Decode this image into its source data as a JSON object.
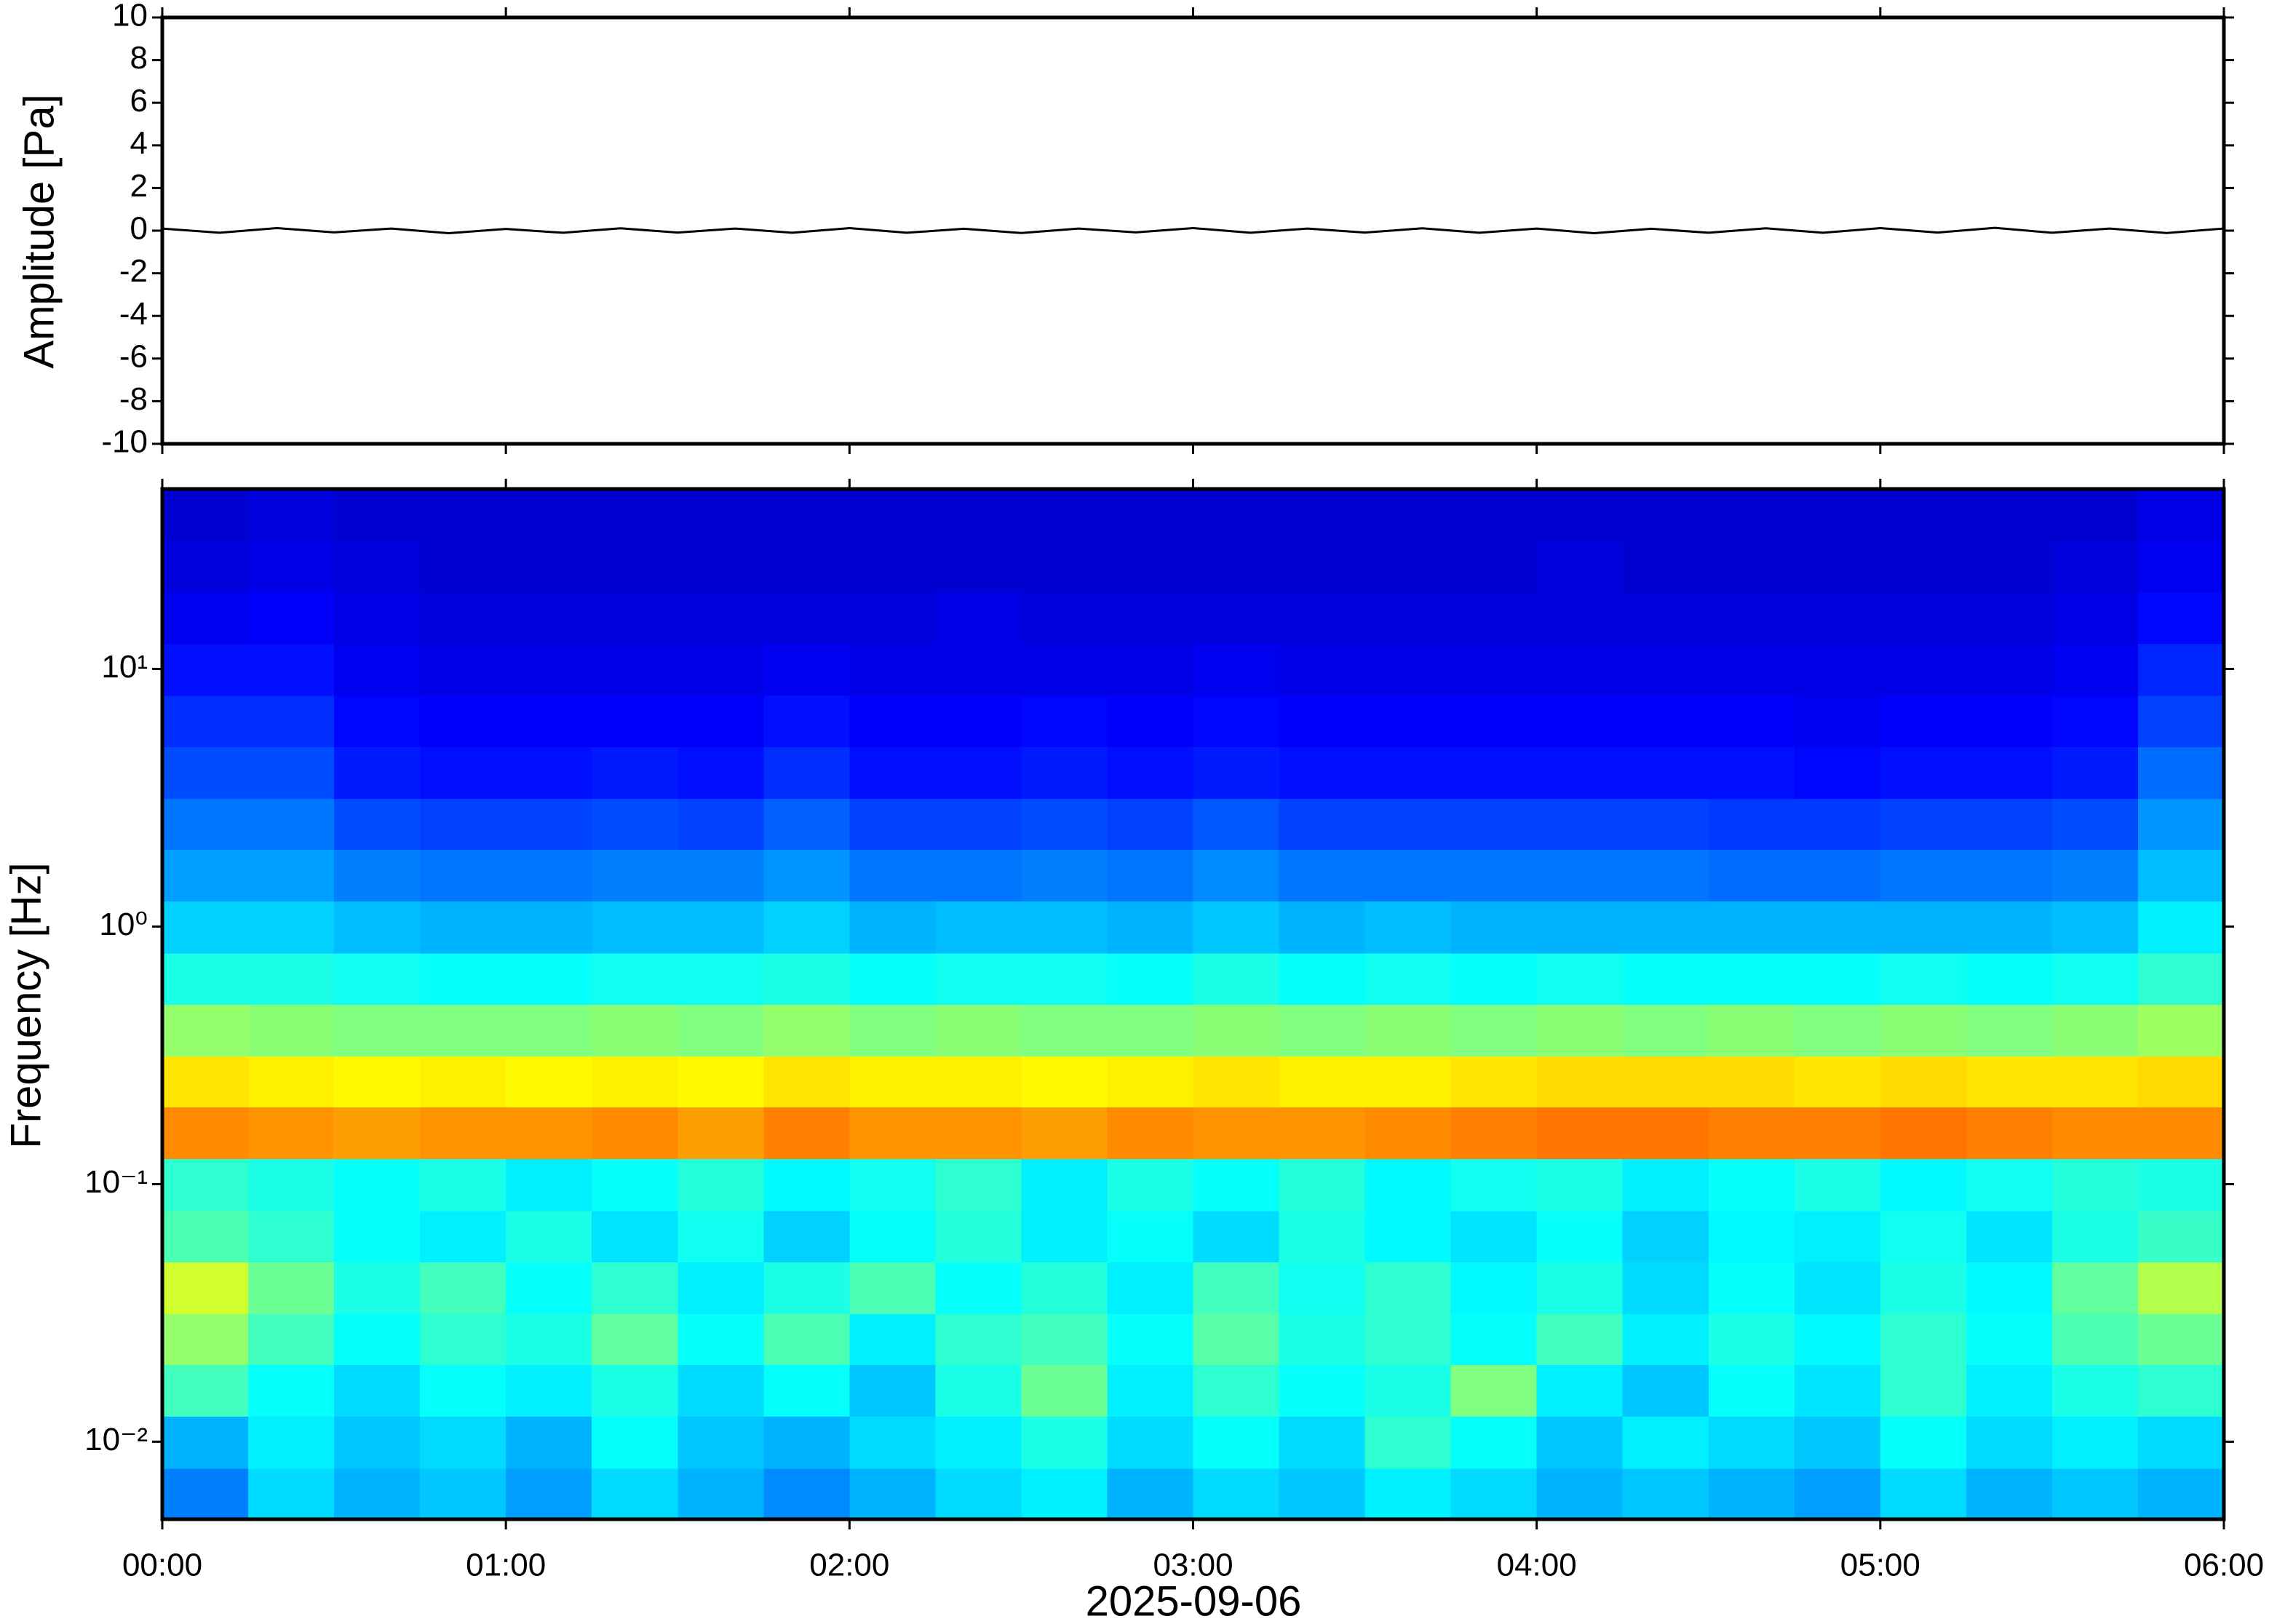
{
  "chart_data": [
    {
      "type": "line",
      "ylabel": "Amplitude [Pa]",
      "color": "#000000",
      "xlim": [
        0,
        360
      ],
      "ylim": [
        -10,
        10
      ],
      "yticks": [
        -10,
        -8,
        -6,
        -4,
        -2,
        0,
        2,
        4,
        6,
        8,
        10
      ],
      "x": [
        0,
        10,
        20,
        30,
        40,
        50,
        60,
        70,
        80,
        90,
        100,
        110,
        120,
        130,
        140,
        150,
        160,
        170,
        180,
        190,
        200,
        210,
        220,
        230,
        240,
        250,
        260,
        270,
        280,
        290,
        300,
        310,
        320,
        330,
        340,
        350,
        360
      ],
      "values": [
        0.1,
        -0.1,
        0.12,
        -0.08,
        0.1,
        -0.12,
        0.08,
        -0.1,
        0.11,
        -0.09,
        0.1,
        -0.1,
        0.12,
        -0.1,
        0.09,
        -0.11,
        0.1,
        -0.08,
        0.12,
        -0.1,
        0.1,
        -0.09,
        0.11,
        -0.1,
        0.1,
        -0.12,
        0.09,
        -0.1,
        0.11,
        -0.1,
        0.12,
        -0.09,
        0.13,
        -0.1,
        0.1,
        -0.11,
        0.1
      ]
    },
    {
      "type": "heatmap",
      "ylabel": "Frequency [Hz]",
      "xlabel": "2025-09-06",
      "xlim": [
        0,
        360
      ],
      "ylim": [
        0.005,
        50
      ],
      "log_y": true,
      "colormap": "jet",
      "zlim": [
        0,
        100
      ],
      "xticks": [
        {
          "value": 0,
          "label": "00:00"
        },
        {
          "value": 60,
          "label": "01:00"
        },
        {
          "value": 120,
          "label": "02:00"
        },
        {
          "value": 180,
          "label": "03:00"
        },
        {
          "value": 240,
          "label": "04:00"
        },
        {
          "value": 300,
          "label": "05:00"
        },
        {
          "value": 360,
          "label": "06:00"
        }
      ],
      "yticks": [
        {
          "value": 0.01,
          "label": "10⁻²"
        },
        {
          "value": 0.1,
          "label": "10⁻¹"
        },
        {
          "value": 1,
          "label": "10⁰"
        },
        {
          "value": 10,
          "label": "10¹"
        }
      ],
      "xedges": [
        0,
        15,
        30,
        45,
        60,
        75,
        90,
        105,
        120,
        135,
        150,
        165,
        180,
        195,
        210,
        225,
        240,
        255,
        270,
        285,
        300,
        315,
        330,
        345,
        360
      ],
      "yedges": [
        0.005,
        0.0079,
        0.0126,
        0.02,
        0.0315,
        0.05,
        0.079,
        0.126,
        0.2,
        0.315,
        0.5,
        0.79,
        1.26,
        2,
        3.15,
        5,
        7.9,
        12.6,
        20,
        31.5,
        50
      ],
      "z": [
        [
          25,
          34,
          30,
          32,
          28,
          34,
          30,
          26,
          30,
          34,
          36,
          30,
          34,
          32,
          36,
          34,
          30,
          32,
          30,
          28,
          34,
          30,
          32,
          30
        ],
        [
          30,
          36,
          32,
          34,
          30,
          38,
          32,
          30,
          34,
          36,
          40,
          34,
          38,
          34,
          42,
          38,
          32,
          36,
          34,
          32,
          38,
          34,
          36,
          34
        ],
        [
          44,
          38,
          34,
          38,
          36,
          40,
          34,
          38,
          32,
          40,
          48,
          36,
          42,
          38,
          40,
          50,
          36,
          32,
          38,
          35,
          42,
          36,
          40,
          42
        ],
        [
          52,
          44,
          38,
          42,
          40,
          47,
          38,
          45,
          36,
          42,
          44,
          38,
          46,
          40,
          42,
          38,
          44,
          36,
          40,
          37,
          42,
          38,
          45,
          48
        ],
        [
          58,
          48,
          40,
          44,
          38,
          42,
          36,
          40,
          45,
          38,
          41,
          36,
          44,
          39,
          42,
          37,
          40,
          34,
          38,
          35,
          40,
          37,
          47,
          55
        ],
        [
          45,
          42,
          38,
          36,
          40,
          35,
          39,
          33,
          38,
          41,
          36,
          38,
          34,
          40,
          37,
          35,
          38,
          33,
          37,
          36,
          39,
          35,
          40,
          43
        ],
        [
          42,
          40,
          38,
          40,
          36,
          38,
          41,
          37,
          39,
          42,
          36,
          40,
          38,
          41,
          37,
          39,
          40,
          36,
          38,
          40,
          37,
          39,
          41,
          40
        ],
        [
          74,
          73,
          72,
          73,
          73,
          74,
          72,
          75,
          73,
          73,
          72,
          74,
          73,
          73,
          74,
          75,
          76,
          76,
          75,
          75,
          76,
          75,
          74,
          74
        ],
        [
          65,
          64,
          63,
          64,
          63,
          64,
          63,
          65,
          64,
          64,
          63,
          64,
          65,
          64,
          64,
          65,
          66,
          66,
          66,
          65,
          66,
          65,
          65,
          66
        ],
        [
          52,
          51,
          50,
          50,
          50,
          51,
          50,
          52,
          50,
          51,
          50,
          50,
          51,
          50,
          51,
          50,
          51,
          50,
          51,
          50,
          51,
          50,
          51,
          53
        ],
        [
          40,
          40,
          39,
          38,
          38,
          39,
          39,
          40,
          38,
          39,
          39,
          38,
          40,
          38,
          39,
          38,
          39,
          38,
          38,
          38,
          39,
          38,
          39,
          42
        ],
        [
          33,
          33,
          31,
          30,
          30,
          31,
          31,
          33,
          30,
          31,
          31,
          30,
          32,
          30,
          31,
          30,
          30,
          30,
          30,
          30,
          30,
          30,
          31,
          36
        ],
        [
          28,
          28,
          25,
          24,
          24,
          25,
          25,
          27,
          24,
          24,
          25,
          24,
          26,
          24,
          24,
          24,
          24,
          24,
          23,
          23,
          24,
          24,
          25,
          31
        ],
        [
          24,
          24,
          20,
          19,
          19,
          20,
          19,
          22,
          19,
          19,
          20,
          19,
          21,
          19,
          19,
          19,
          19,
          19,
          18,
          18,
          19,
          19,
          20,
          27
        ],
        [
          20,
          20,
          15,
          14,
          14,
          15,
          14,
          17,
          14,
          14,
          15,
          14,
          15,
          14,
          14,
          14,
          14,
          14,
          14,
          13,
          14,
          14,
          15,
          23
        ],
        [
          17,
          17,
          13,
          12,
          12,
          12,
          12,
          14,
          12,
          12,
          13,
          12,
          13,
          12,
          12,
          12,
          12,
          12,
          12,
          11,
          12,
          12,
          13,
          19
        ],
        [
          14,
          14,
          11,
          10,
          10,
          10,
          10,
          11,
          10,
          10,
          10,
          10,
          11,
          10,
          10,
          10,
          10,
          10,
          10,
          10,
          10,
          10,
          11,
          16
        ],
        [
          11,
          12,
          10,
          9,
          9,
          9,
          9,
          9,
          9,
          10,
          9,
          9,
          9,
          9,
          9,
          9,
          9,
          9,
          9,
          9,
          9,
          9,
          10,
          13
        ],
        [
          9,
          10,
          9,
          8,
          8,
          8,
          8,
          8,
          8,
          8,
          8,
          8,
          8,
          8,
          8,
          8,
          9,
          8,
          8,
          8,
          8,
          8,
          9,
          11
        ],
        [
          8,
          9,
          8,
          8,
          8,
          8,
          8,
          8,
          8,
          8,
          8,
          8,
          8,
          8,
          8,
          8,
          8,
          8,
          8,
          8,
          8,
          8,
          8,
          10
        ]
      ]
    }
  ]
}
